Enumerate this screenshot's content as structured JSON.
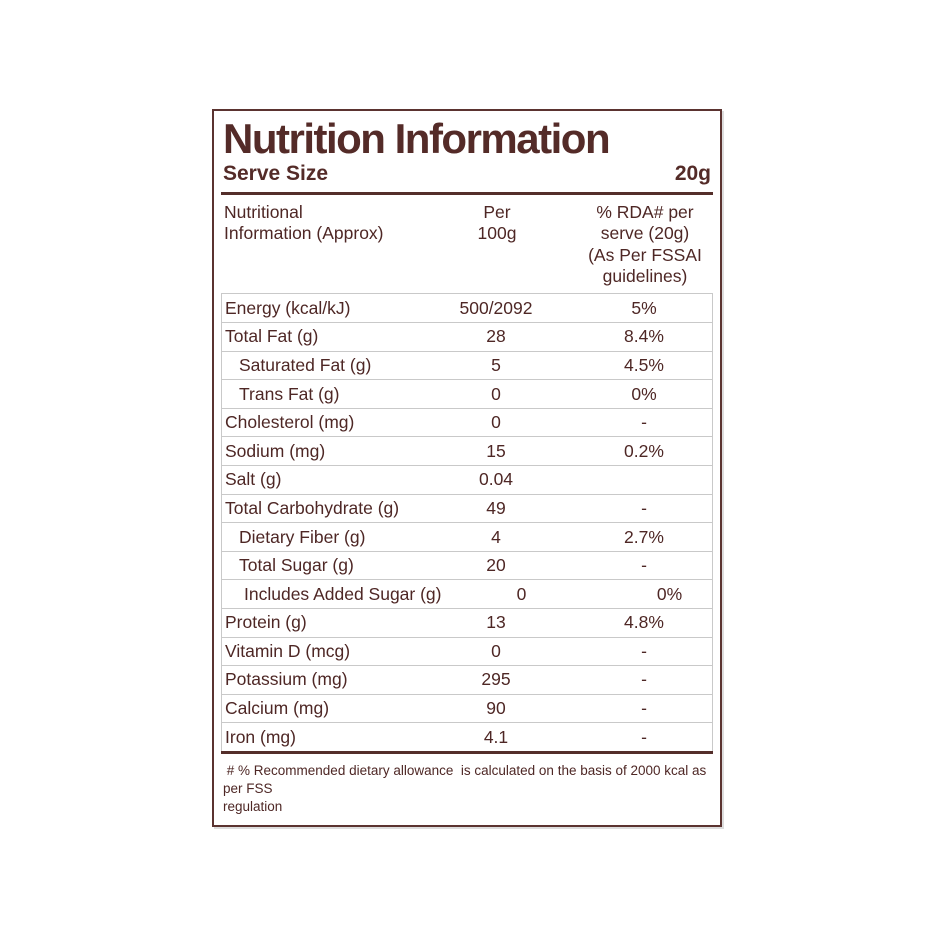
{
  "label": {
    "title": "Nutrition Information",
    "serve_size_label": "Serve Size",
    "serve_size_value": "20g",
    "columns": {
      "nutrient": "Nutritional\nInformation (Approx)",
      "per_100g": "Per\n100g",
      "rda": "% RDA# per\nserve (20g)\n(As Per FSSAI\nguidelines)"
    },
    "rows": [
      {
        "label": "Energy (kcal/kJ)",
        "per_100g": "500/2092",
        "rda": "5%"
      },
      {
        "label": "Total Fat (g)",
        "per_100g": "28",
        "rda": "8.4%"
      },
      {
        "label": "Saturated Fat (g)",
        "per_100g": "5",
        "rda": "4.5%"
      },
      {
        "label": "Trans Fat (g)",
        "per_100g": "0",
        "rda": "0%"
      },
      {
        "label": "Cholesterol (mg)",
        "per_100g": "0",
        "rda": "-"
      },
      {
        "label": "Sodium (mg)",
        "per_100g": "15",
        "rda": "0.2%"
      },
      {
        "label": "Salt (g)",
        "per_100g": "0.04",
        "rda": ""
      },
      {
        "label": "Total Carbohydrate (g)",
        "per_100g": "49",
        "rda": "-"
      },
      {
        "label": "Dietary Fiber (g)",
        "per_100g": "4",
        "rda": "2.7%"
      },
      {
        "label": "Total Sugar (g)",
        "per_100g": "20",
        "rda": "-"
      },
      {
        "label": "Includes Added Sugar (g)",
        "per_100g": "0",
        "rda": "0%"
      },
      {
        "label": "Protein (g)",
        "per_100g": "13",
        "rda": "4.8%"
      },
      {
        "label": "Vitamin D (mcg)",
        "per_100g": "0",
        "rda": "-"
      },
      {
        "label": "Potassium (mg)",
        "per_100g": "295",
        "rda": "-"
      },
      {
        "label": "Calcium (mg)",
        "per_100g": "90",
        "rda": "-"
      },
      {
        "label": "Iron (mg)",
        "per_100g": "4.1",
        "rda": "-"
      }
    ],
    "footnote": " # % Recommended dietary allowance  is calculated on the basis of 2000 kcal as per FSS\nregulation",
    "colors": {
      "text": "#4e2725",
      "rule": "#542e2a",
      "divider": "#c9c9c9",
      "border": "#5b3330"
    }
  }
}
